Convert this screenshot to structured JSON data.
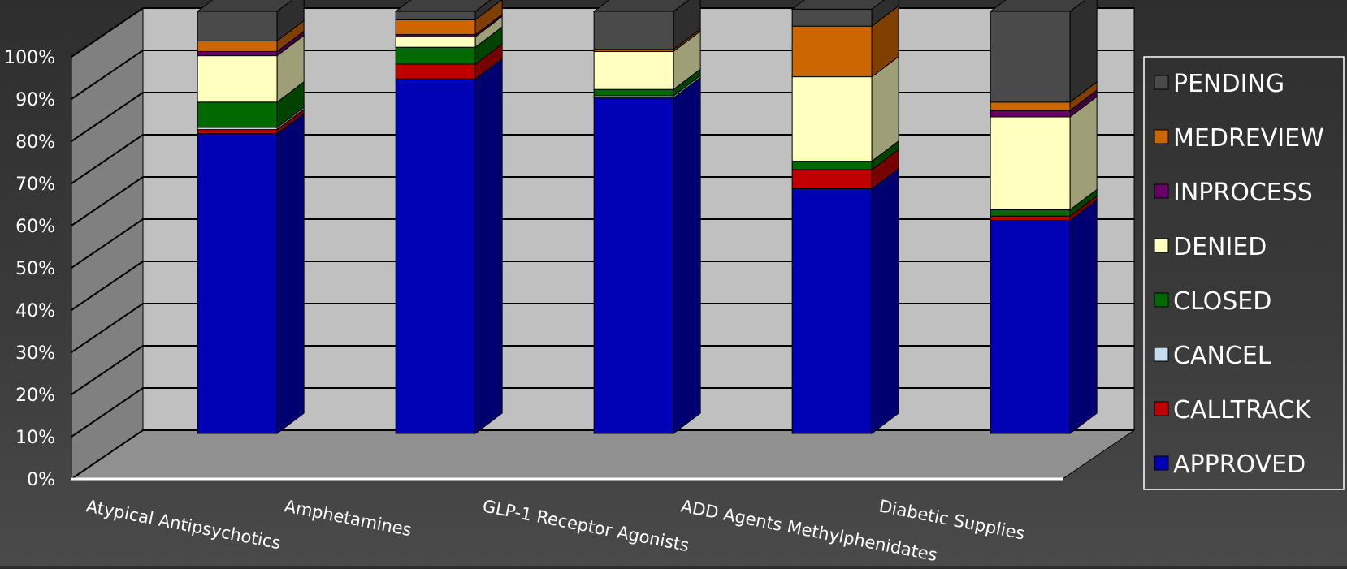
{
  "chart_data": {
    "type": "bar",
    "stacked": true,
    "normalized": true,
    "style": "3d",
    "categories": [
      "Atypical Antipsychotics",
      "Amphetamines",
      "GLP-1 Receptor Agonists",
      "ADD Agents Methylphenidates",
      "Diabetic Supplies"
    ],
    "ylim": [
      0,
      100
    ],
    "yticks": [
      "0%",
      "10%",
      "20%",
      "30%",
      "40%",
      "50%",
      "60%",
      "70%",
      "80%",
      "90%",
      "100%"
    ],
    "grid": true,
    "legend_position": "right",
    "series": [
      {
        "name": "APPROVED",
        "color": "#0000b4",
        "values": [
          71,
          84,
          79.5,
          58,
          50.5
        ]
      },
      {
        "name": "CALLTRACK",
        "color": "#c00000",
        "values": [
          1,
          3.5,
          0,
          4.5,
          1
        ]
      },
      {
        "name": "CANCEL",
        "color": "#c8dcf0",
        "values": [
          0.5,
          0,
          0.5,
          0,
          0
        ]
      },
      {
        "name": "CLOSED",
        "color": "#006a00",
        "values": [
          6,
          4,
          1.5,
          2,
          1.5
        ]
      },
      {
        "name": "DENIED",
        "color": "#ffffc0",
        "values": [
          11,
          2.5,
          9,
          20,
          22
        ]
      },
      {
        "name": "INPROCESS",
        "color": "#660066",
        "values": [
          1,
          0.5,
          0,
          0,
          1.5
        ]
      },
      {
        "name": "MEDREVIEW",
        "color": "#cc6600",
        "values": [
          2.5,
          3.5,
          0.5,
          12,
          2
        ]
      },
      {
        "name": "PENDING",
        "color": "#4a4a4a",
        "values": [
          7,
          2,
          9,
          4,
          21.5
        ]
      }
    ],
    "legend_order": [
      "PENDING",
      "MEDREVIEW",
      "INPROCESS",
      "DENIED",
      "CLOSED",
      "CANCEL",
      "CALLTRACK",
      "APPROVED"
    ]
  }
}
